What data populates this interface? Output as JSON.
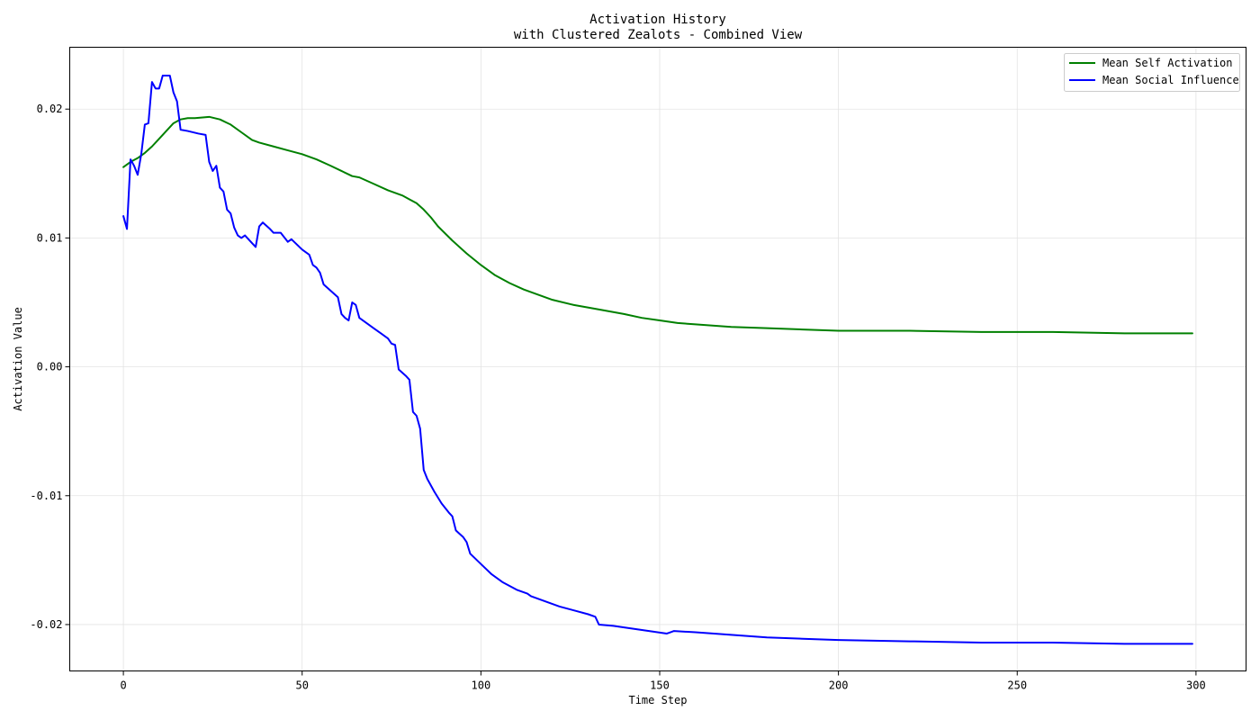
{
  "chart_data": {
    "type": "line",
    "title": "Activation History",
    "subtitle": "with Clustered Zealots - Combined View",
    "xlabel": "Time Step",
    "ylabel": "Activation Value",
    "xlim": [
      -15,
      314
    ],
    "ylim": [
      -0.0236,
      0.0248
    ],
    "x_ticks": [
      0,
      50,
      100,
      150,
      200,
      250,
      300
    ],
    "x_tick_labels": [
      "0",
      "50",
      "100",
      "150",
      "200",
      "250",
      "300"
    ],
    "y_ticks": [
      -0.02,
      -0.01,
      0.0,
      0.01,
      0.02
    ],
    "y_tick_labels": [
      "-0.02",
      "-0.01",
      "0.00",
      "0.01",
      "0.02"
    ],
    "grid": true,
    "legend_position": "top-right",
    "series": [
      {
        "name": "Mean Self Activation",
        "color": "#008000",
        "points": [
          [
            0,
            0.0155
          ],
          [
            2,
            0.0159
          ],
          [
            4,
            0.0162
          ],
          [
            6,
            0.0166
          ],
          [
            8,
            0.0171
          ],
          [
            10,
            0.0177
          ],
          [
            12,
            0.0183
          ],
          [
            14,
            0.0189
          ],
          [
            16,
            0.0192
          ],
          [
            18,
            0.0193
          ],
          [
            20,
            0.0193
          ],
          [
            24,
            0.0194
          ],
          [
            27,
            0.0192
          ],
          [
            30,
            0.0188
          ],
          [
            33,
            0.0182
          ],
          [
            36,
            0.0176
          ],
          [
            38,
            0.0174
          ],
          [
            42,
            0.0171
          ],
          [
            46,
            0.0168
          ],
          [
            50,
            0.0165
          ],
          [
            54,
            0.0161
          ],
          [
            58,
            0.0156
          ],
          [
            61,
            0.0152
          ],
          [
            64,
            0.0148
          ],
          [
            66,
            0.0147
          ],
          [
            70,
            0.0142
          ],
          [
            74,
            0.0137
          ],
          [
            78,
            0.0133
          ],
          [
            80,
            0.013
          ],
          [
            82,
            0.0127
          ],
          [
            84,
            0.0122
          ],
          [
            86,
            0.0116
          ],
          [
            88,
            0.0109
          ],
          [
            92,
            0.0098
          ],
          [
            96,
            0.0088
          ],
          [
            100,
            0.0079
          ],
          [
            104,
            0.0071
          ],
          [
            108,
            0.0065
          ],
          [
            112,
            0.006
          ],
          [
            116,
            0.0056
          ],
          [
            120,
            0.0052
          ],
          [
            126,
            0.0048
          ],
          [
            132,
            0.0045
          ],
          [
            136,
            0.0043
          ],
          [
            140,
            0.0041
          ],
          [
            145,
            0.0038
          ],
          [
            150,
            0.0036
          ],
          [
            155,
            0.0034
          ],
          [
            160,
            0.0033
          ],
          [
            170,
            0.0031
          ],
          [
            180,
            0.003
          ],
          [
            190,
            0.0029
          ],
          [
            200,
            0.0028
          ],
          [
            220,
            0.0028
          ],
          [
            240,
            0.0027
          ],
          [
            260,
            0.0027
          ],
          [
            280,
            0.0026
          ],
          [
            299,
            0.0026
          ]
        ]
      },
      {
        "name": "Mean Social Influence",
        "color": "#0000ff",
        "points": [
          [
            0,
            0.0117
          ],
          [
            1,
            0.0107
          ],
          [
            2,
            0.0161
          ],
          [
            3,
            0.0156
          ],
          [
            4,
            0.0149
          ],
          [
            5,
            0.0165
          ],
          [
            6,
            0.0188
          ],
          [
            7,
            0.0189
          ],
          [
            8,
            0.0221
          ],
          [
            9,
            0.0216
          ],
          [
            10,
            0.0216
          ],
          [
            11,
            0.0226
          ],
          [
            12,
            0.0226
          ],
          [
            13,
            0.0226
          ],
          [
            14,
            0.0213
          ],
          [
            15,
            0.0206
          ],
          [
            16,
            0.0184
          ],
          [
            18,
            0.0183
          ],
          [
            21,
            0.0181
          ],
          [
            23,
            0.018
          ],
          [
            24,
            0.0159
          ],
          [
            25,
            0.0152
          ],
          [
            26,
            0.0156
          ],
          [
            27,
            0.0139
          ],
          [
            28,
            0.0136
          ],
          [
            29,
            0.0122
          ],
          [
            30,
            0.0119
          ],
          [
            31,
            0.0108
          ],
          [
            32,
            0.0102
          ],
          [
            33,
            0.01
          ],
          [
            34,
            0.0102
          ],
          [
            36,
            0.0096
          ],
          [
            37,
            0.0093
          ],
          [
            38,
            0.0109
          ],
          [
            39,
            0.0112
          ],
          [
            41,
            0.0107
          ],
          [
            42,
            0.0104
          ],
          [
            44,
            0.0104
          ],
          [
            46,
            0.0097
          ],
          [
            47,
            0.0099
          ],
          [
            50,
            0.0091
          ],
          [
            52,
            0.0087
          ],
          [
            53,
            0.0079
          ],
          [
            54,
            0.0077
          ],
          [
            55,
            0.0073
          ],
          [
            56,
            0.0064
          ],
          [
            58,
            0.0059
          ],
          [
            60,
            0.0054
          ],
          [
            61,
            0.0041
          ],
          [
            62,
            0.0038
          ],
          [
            63,
            0.0036
          ],
          [
            64,
            0.005
          ],
          [
            65,
            0.0048
          ],
          [
            66,
            0.0038
          ],
          [
            68,
            0.0034
          ],
          [
            70,
            0.003
          ],
          [
            72,
            0.0026
          ],
          [
            74,
            0.0022
          ],
          [
            75,
            0.0018
          ],
          [
            76,
            0.0017
          ],
          [
            77,
            -0.0002
          ],
          [
            79,
            -0.0007
          ],
          [
            80,
            -0.001
          ],
          [
            81,
            -0.0035
          ],
          [
            82,
            -0.0038
          ],
          [
            83,
            -0.0048
          ],
          [
            84,
            -0.008
          ],
          [
            85,
            -0.0087
          ],
          [
            87,
            -0.0097
          ],
          [
            89,
            -0.0106
          ],
          [
            91,
            -0.0113
          ],
          [
            92,
            -0.0116
          ],
          [
            93,
            -0.0127
          ],
          [
            95,
            -0.0132
          ],
          [
            96,
            -0.0136
          ],
          [
            97,
            -0.0145
          ],
          [
            100,
            -0.0153
          ],
          [
            103,
            -0.0161
          ],
          [
            106,
            -0.0167
          ],
          [
            110,
            -0.0173
          ],
          [
            113,
            -0.0176
          ],
          [
            114,
            -0.0178
          ],
          [
            118,
            -0.0182
          ],
          [
            122,
            -0.0186
          ],
          [
            126,
            -0.0189
          ],
          [
            130,
            -0.0192
          ],
          [
            132,
            -0.0194
          ],
          [
            133,
            -0.02
          ],
          [
            137,
            -0.0201
          ],
          [
            142,
            -0.0203
          ],
          [
            147,
            -0.0205
          ],
          [
            152,
            -0.0207
          ],
          [
            153,
            -0.0206
          ],
          [
            154,
            -0.0205
          ],
          [
            160,
            -0.0206
          ],
          [
            170,
            -0.0208
          ],
          [
            180,
            -0.021
          ],
          [
            190,
            -0.0211
          ],
          [
            200,
            -0.0212
          ],
          [
            220,
            -0.0213
          ],
          [
            240,
            -0.0214
          ],
          [
            260,
            -0.0214
          ],
          [
            280,
            -0.0215
          ],
          [
            299,
            -0.0215
          ]
        ]
      }
    ]
  }
}
